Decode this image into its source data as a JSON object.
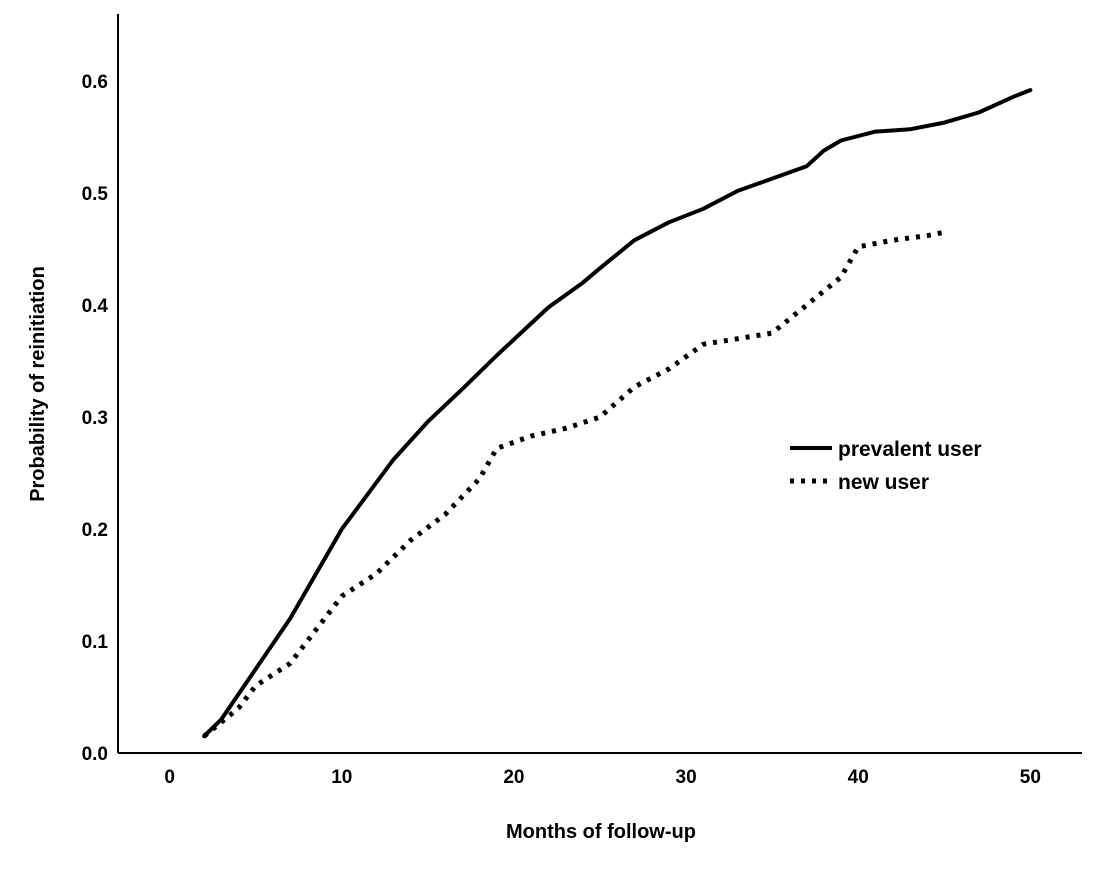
{
  "chart_data": {
    "type": "line",
    "title": "",
    "xlabel": "Months of follow-up",
    "ylabel": "Probability of reinitiation",
    "xlim": [
      -3,
      53
    ],
    "ylim": [
      0,
      0.66
    ],
    "x_ticks": [
      0,
      10,
      20,
      30,
      40,
      50
    ],
    "x_tick_labels": [
      "0",
      "10",
      "20",
      "30",
      "40",
      "50"
    ],
    "y_ticks": [
      0.0,
      0.1,
      0.2,
      0.3,
      0.4,
      0.5,
      0.6
    ],
    "y_tick_labels": [
      "0.0",
      "0.1",
      "0.2",
      "0.3",
      "0.4",
      "0.5",
      "0.6"
    ],
    "grid": false,
    "legend_position": "right",
    "series": [
      {
        "name": "prevalent user",
        "style": "solid",
        "color": "#000000",
        "points": [
          [
            2,
            0.015
          ],
          [
            3,
            0.03
          ],
          [
            5,
            0.075
          ],
          [
            7,
            0.12
          ],
          [
            10,
            0.2
          ],
          [
            13,
            0.262
          ],
          [
            15,
            0.296
          ],
          [
            17,
            0.325
          ],
          [
            19,
            0.355
          ],
          [
            22,
            0.398
          ],
          [
            24,
            0.42
          ],
          [
            25,
            0.433
          ],
          [
            27,
            0.458
          ],
          [
            29,
            0.474
          ],
          [
            31,
            0.486
          ],
          [
            33,
            0.502
          ],
          [
            35,
            0.513
          ],
          [
            37,
            0.524
          ],
          [
            38,
            0.538
          ],
          [
            39,
            0.547
          ],
          [
            41,
            0.555
          ],
          [
            43,
            0.557
          ],
          [
            45,
            0.563
          ],
          [
            47,
            0.572
          ],
          [
            49,
            0.586
          ],
          [
            50,
            0.592
          ]
        ]
      },
      {
        "name": "new user",
        "style": "dotted",
        "color": "#000000",
        "points": [
          [
            2,
            0.015
          ],
          [
            4,
            0.04
          ],
          [
            5,
            0.06
          ],
          [
            7,
            0.08
          ],
          [
            10,
            0.14
          ],
          [
            12,
            0.16
          ],
          [
            14,
            0.19
          ],
          [
            16,
            0.213
          ],
          [
            18,
            0.245
          ],
          [
            19,
            0.272
          ],
          [
            21,
            0.283
          ],
          [
            23,
            0.29
          ],
          [
            25,
            0.3
          ],
          [
            27,
            0.327
          ],
          [
            29,
            0.343
          ],
          [
            31,
            0.365
          ],
          [
            33,
            0.37
          ],
          [
            35,
            0.375
          ],
          [
            37,
            0.4
          ],
          [
            39,
            0.425
          ],
          [
            40,
            0.452
          ],
          [
            42,
            0.458
          ],
          [
            44,
            0.462
          ],
          [
            45,
            0.465
          ]
        ]
      }
    ]
  }
}
